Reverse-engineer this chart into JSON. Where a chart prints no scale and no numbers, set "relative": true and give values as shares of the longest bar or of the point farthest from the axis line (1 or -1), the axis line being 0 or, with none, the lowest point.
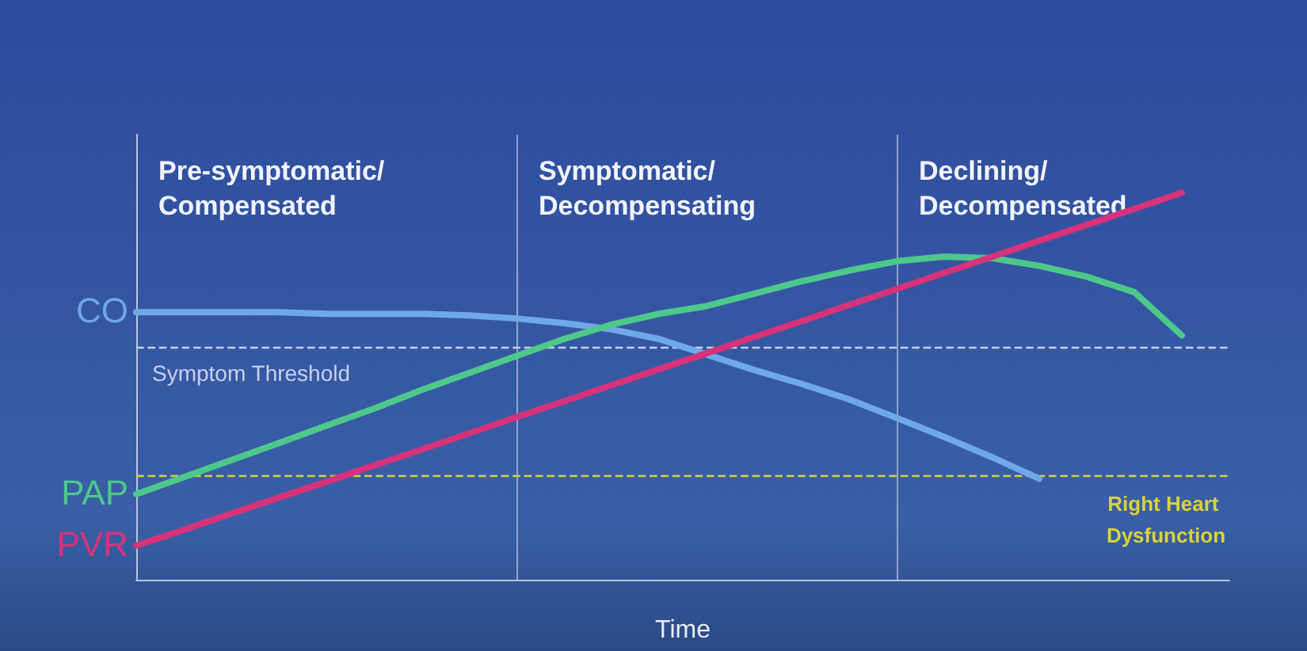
{
  "chart_data": {
    "type": "line",
    "relative": true,
    "xlabel": "Time",
    "legend": false,
    "marker": "none",
    "line_style": "solid",
    "categories": [
      null,
      null,
      null,
      null,
      null,
      null,
      null,
      null,
      null,
      null,
      null,
      null,
      null,
      null,
      null,
      null,
      null,
      null,
      null,
      null,
      null,
      null,
      null,
      null
    ],
    "series": [
      {
        "name": "CO",
        "color": "#6fa8e8",
        "values": [
          0.691,
          0.691,
          0.691,
          0.691,
          0.687,
          0.687,
          0.687,
          0.683,
          0.675,
          0.663,
          0.647,
          0.622,
          0.582,
          0.542,
          0.506,
          0.466,
          0.418,
          0.369,
          0.317,
          0.261,
          null,
          null,
          null,
          null
        ]
      },
      {
        "name": "PAP",
        "color": "#4dc88a",
        "values": [
          0.221,
          0.265,
          0.309,
          0.353,
          0.398,
          0.442,
          0.49,
          0.534,
          0.578,
          0.622,
          0.659,
          0.687,
          0.707,
          0.739,
          0.771,
          0.799,
          0.823,
          0.835,
          0.831,
          0.811,
          0.783,
          0.743,
          0.631,
          null
        ]
      },
      {
        "name": "PVR",
        "color": "#d6337a",
        "values": [
          0.088,
          0.129,
          0.171,
          0.212,
          0.253,
          0.295,
          0.336,
          0.378,
          0.42,
          0.461,
          0.503,
          0.544,
          0.585,
          0.627,
          0.668,
          0.71,
          0.751,
          0.793,
          0.834,
          0.876,
          0.917,
          0.958,
          1.0,
          null
        ]
      }
    ],
    "ref_lines": [
      {
        "axis": "y",
        "value": 0.602,
        "label": "Symptom Threshold",
        "color": "#c8d0e8",
        "line_style": "dashed"
      },
      {
        "axis": "y",
        "value": 0.265,
        "label": "Right Heart Dysfunction",
        "color": "#d8d23a",
        "line_style": "dashed"
      }
    ],
    "annotations": [
      "Pre-symptomatic/ Compensated",
      "Symptomatic/ Decompensating",
      "Declining/ Decompensated"
    ]
  }
}
